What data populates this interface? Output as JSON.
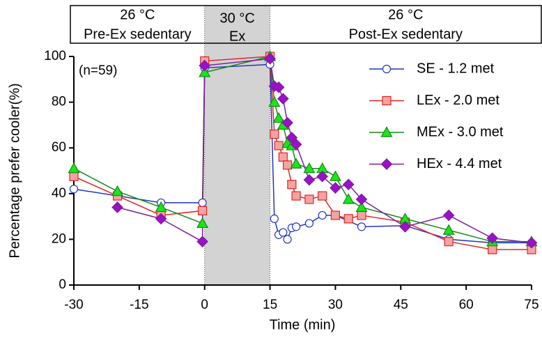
{
  "chart_data": {
    "type": "line",
    "x_label": "Time (min)",
    "y_label": "Percentage prefer cooler(%)",
    "annotation": "(n=59)",
    "header_cells": [
      {
        "lines": [
          "26 °C",
          "Pre-Ex sedentary"
        ]
      },
      {
        "lines": [
          "30 °C",
          "Ex"
        ]
      },
      {
        "lines": [
          "26 °C",
          "Post-Ex sedentary"
        ]
      }
    ],
    "shaded_x": [
      0,
      15
    ],
    "shade_color": "#d3d3d3",
    "xlim": [
      -30,
      75
    ],
    "xticks": [
      -30,
      -15,
      0,
      15,
      30,
      45,
      60,
      75
    ],
    "ylim": [
      0,
      100
    ],
    "yticks": [
      0,
      20,
      40,
      60,
      80,
      100
    ],
    "legend": "upper right",
    "series": [
      {
        "name": "SE - 1.2 met",
        "color": "#1f35c0",
        "fill": "#ffffff",
        "marker": "circle",
        "x": [
          -30,
          -10,
          -0.5,
          0,
          15,
          16,
          17,
          18,
          19,
          20,
          21,
          24,
          27,
          30,
          36,
          46,
          56,
          66,
          75
        ],
        "values": [
          42,
          36,
          36,
          95,
          96.5,
          29,
          22,
          23,
          20,
          25,
          25.5,
          27,
          30.5,
          30.5,
          25.5,
          26,
          20,
          18.5,
          18.5
        ]
      },
      {
        "name": "LEx - 2.0 met",
        "color": "#e02525",
        "fill": "#f4a3a3",
        "marker": "square",
        "x": [
          -30,
          -20,
          -10,
          -0.5,
          0,
          15,
          16,
          17,
          18,
          19,
          20,
          21,
          24,
          27,
          30,
          33,
          36,
          46,
          56,
          66,
          75
        ],
        "values": [
          47.5,
          39,
          30.5,
          32.5,
          98,
          100,
          66,
          61,
          56,
          52.5,
          44,
          39,
          37.5,
          39,
          30.5,
          29,
          30.5,
          27.5,
          19,
          15.5,
          15.5
        ]
      },
      {
        "name": "MEx - 3.0 met",
        "color": "#138a13",
        "fill": "#19e619",
        "marker": "triangle",
        "x": [
          -30,
          -20,
          -10,
          -0.5,
          0,
          15,
          16,
          17,
          18,
          19,
          20,
          21,
          24,
          27,
          30,
          33,
          36,
          46,
          56,
          66,
          75
        ],
        "values": [
          51,
          41,
          34,
          27,
          93,
          100,
          80,
          73,
          70,
          62,
          61,
          53,
          51,
          51,
          47.5,
          37.5,
          34,
          29,
          24,
          19,
          19
        ]
      },
      {
        "name": "HEx - 4.4 met",
        "color": "#7a1fa0",
        "fill": "#9b10c8",
        "marker": "diamond",
        "x": [
          -20,
          -10,
          -0.5,
          0,
          15,
          16,
          17,
          18,
          19,
          20,
          21,
          24,
          27,
          30,
          33,
          36,
          46,
          56,
          66,
          75
        ],
        "values": [
          34,
          29,
          19,
          96,
          99,
          87,
          86.5,
          81.5,
          71,
          64.5,
          61.5,
          46,
          47.5,
          42.5,
          44,
          37.5,
          25.5,
          30.5,
          20.5,
          18.5
        ]
      }
    ]
  }
}
